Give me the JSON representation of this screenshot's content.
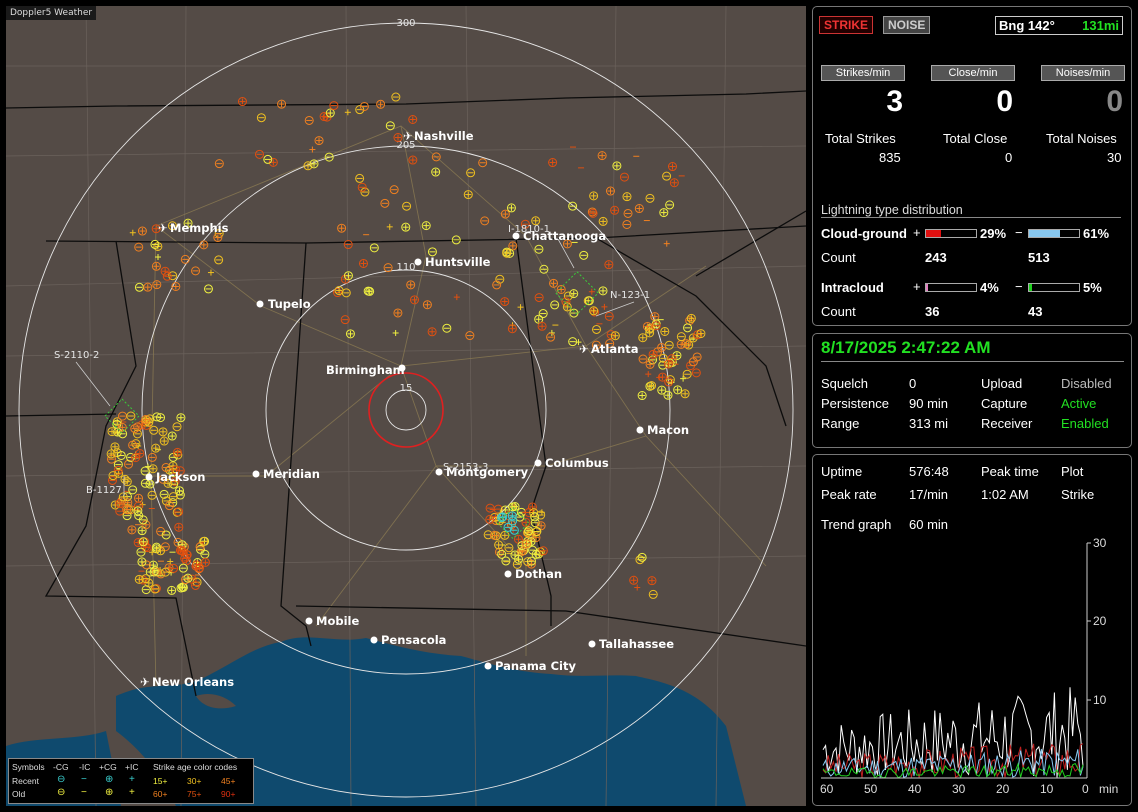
{
  "app_title": "Doppler5 Weather",
  "map": {
    "range_labels": [
      "300",
      "205",
      "110",
      "15"
    ],
    "cities": [
      {
        "name": "Nashville",
        "airport": true
      },
      {
        "name": "Memphis",
        "airport": true
      },
      {
        "name": "Chattanooga",
        "airport": false
      },
      {
        "name": "Huntsville",
        "airport": false
      },
      {
        "name": "Tupelo",
        "airport": false
      },
      {
        "name": "Atlanta",
        "airport": true
      },
      {
        "name": "Birmingham",
        "airport": false
      },
      {
        "name": "Macon",
        "airport": false
      },
      {
        "name": "Jackson",
        "airport": false
      },
      {
        "name": "Meridian",
        "airport": false
      },
      {
        "name": "Montgomery",
        "airport": false
      },
      {
        "name": "Columbus",
        "airport": false
      },
      {
        "name": "Dothan",
        "airport": false
      },
      {
        "name": "Mobile",
        "airport": false
      },
      {
        "name": "Pensacola",
        "airport": false
      },
      {
        "name": "Tallahassee",
        "airport": false
      },
      {
        "name": "Panama City",
        "airport": false
      },
      {
        "name": "New Orleans",
        "airport": true
      }
    ],
    "storm_labels": [
      "I-1810-1",
      "N-123-1",
      "S-2110-2",
      "B-1127",
      "S-2153-3"
    ]
  },
  "legend": {
    "symbols_label": "Symbols",
    "cols": [
      "-CG",
      "-IC",
      "+CG",
      "+IC"
    ],
    "age_title": "Strike age color codes",
    "recent_label": "Recent",
    "old_label": "Old",
    "recent_ages": [
      "15+",
      "30+",
      "45+"
    ],
    "old_ages": [
      "60+",
      "75+",
      "90+"
    ]
  },
  "status": {
    "strike_btn": "STRIKE",
    "noise_btn": "NOISE",
    "bearing": "Bng 142°",
    "distance": "131mi",
    "strikes_min_label": "Strikes/min",
    "close_min_label": "Close/min",
    "noises_min_label": "Noises/min",
    "strikes_min": "3",
    "close_min": "0",
    "noises_min": "0",
    "total_strikes_label": "Total Strikes",
    "total_close_label": "Total Close",
    "total_noises_label": "Total Noises",
    "total_strikes": "835",
    "total_close": "0",
    "total_noises": "30",
    "dist_title": "Lightning type distribution",
    "cg_label": "Cloud-ground",
    "ic_label": "Intracloud",
    "count_label": "Count",
    "plus": "+",
    "minus": "−",
    "cg_pos_pct": "29%",
    "cg_neg_pct": "61%",
    "cg_pos_count": "243",
    "cg_neg_count": "513",
    "ic_pos_pct": "4%",
    "ic_neg_pct": "5%",
    "ic_pos_count": "36",
    "ic_neg_count": "43",
    "cg_pos_fill": 0.29,
    "cg_neg_fill": 0.61,
    "ic_pos_fill": 0.04,
    "ic_neg_fill": 0.05,
    "colors": {
      "cg_pos": "#e01010",
      "cg_neg": "#88c8f0",
      "ic_pos": "#e080c0",
      "ic_neg": "#20d020"
    }
  },
  "settings": {
    "datetime": "8/17/2025 2:47:22 AM",
    "squelch_label": "Squelch",
    "squelch": "0",
    "persistence_label": "Persistence",
    "persistence": "90 min",
    "range_label": "Range",
    "range": "313 mi",
    "upload_label": "Upload",
    "upload": "Disabled",
    "capture_label": "Capture",
    "capture": "Active",
    "receiver_label": "Receiver",
    "receiver": "Enabled"
  },
  "trend": {
    "uptime_label": "Uptime",
    "uptime": "576:48",
    "peak_time_label": "Peak time",
    "peak_time": "1:02 AM",
    "plot_label": "Plot",
    "plot": "Strike",
    "peak_rate_label": "Peak rate",
    "peak_rate": "17/min",
    "trend_label": "Trend graph",
    "trend_window": "60 min",
    "y_ticks": [
      "30",
      "20",
      "10"
    ],
    "x_ticks": [
      "60",
      "50",
      "40",
      "30",
      "20",
      "10",
      "0"
    ],
    "x_unit": "min"
  }
}
